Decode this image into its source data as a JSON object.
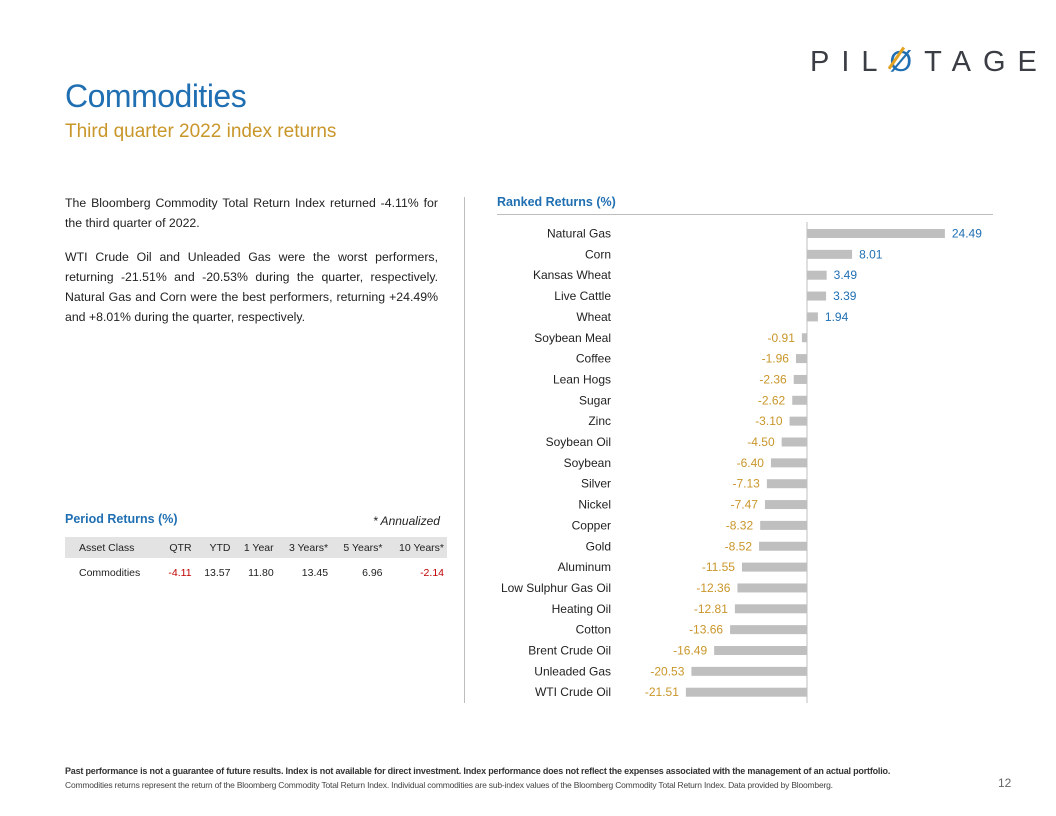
{
  "brand": {
    "logo_text": "PILOTAGE",
    "accent": "#1f6fb2",
    "gold": "#c9962a"
  },
  "header": {
    "title": "Commodities",
    "subtitle": "Third quarter 2022 index returns"
  },
  "summary": {
    "paragraph1": "The Bloomberg Commodity Total Return Index returned -4.11% for the third quarter of 2022.",
    "paragraph2": "WTI Crude Oil and Unleaded Gas were the worst performers, returning -21.51% and -20.53% during the quarter, respectively. Natural Gas and Corn were the best performers, returning +24.49% and +8.01% during the quarter, respectively."
  },
  "period_returns": {
    "title": "Period Returns (%)",
    "note": "* Annualized",
    "headers": [
      "Asset Class",
      "QTR",
      "YTD",
      "1 Year",
      "3 Years*",
      "5 Years*",
      "10 Years*"
    ],
    "row": [
      "Commodities",
      "-4.11",
      "13.57",
      "11.80",
      "13.45",
      "6.96",
      "-2.14"
    ]
  },
  "chart_data": {
    "type": "bar",
    "orientation": "horizontal",
    "title": "Ranked Returns (%)",
    "categories": [
      "Natural Gas",
      "Corn",
      "Kansas Wheat",
      "Live Cattle",
      "Wheat",
      "Soybean Meal",
      "Coffee",
      "Lean Hogs",
      "Sugar",
      "Zinc",
      "Soybean Oil",
      "Soybean",
      "Silver",
      "Nickel",
      "Copper",
      "Gold",
      "Aluminum",
      "Low Sulphur Gas Oil",
      "Heating Oil",
      "Cotton",
      "Brent Crude Oil",
      "Unleaded Gas",
      "WTI Crude Oil"
    ],
    "values": [
      24.49,
      8.01,
      3.49,
      3.39,
      1.94,
      -0.91,
      -1.96,
      -2.36,
      -2.62,
      -3.1,
      -4.5,
      -6.4,
      -7.13,
      -7.47,
      -8.32,
      -8.52,
      -11.55,
      -12.36,
      -12.81,
      -13.66,
      -16.49,
      -20.53,
      -21.51
    ],
    "labels": [
      "24.49",
      "8.01",
      "3.49",
      "3.39",
      "1.94",
      "-0.91",
      "-1.96",
      "-2.36",
      "-2.62",
      "-3.10",
      "-4.50",
      "-6.40",
      "-7.13",
      "-7.47",
      "-8.32",
      "-8.52",
      "-11.55",
      "-12.36",
      "-12.81",
      "-13.66",
      "-16.49",
      "-20.53",
      "-21.51"
    ],
    "positive_label_color": "#1f6fb2",
    "negative_label_color": "#c9962a",
    "bar_color": "#bfbfbf",
    "xlim": [
      -21.51,
      24.49
    ]
  },
  "footer": {
    "disclaimer": "Past performance is not a guarantee of future results. Index is not available for direct investment. Index performance does not reflect the expenses associated with the management of an actual portfolio.",
    "note": "Commodities returns represent the return of the Bloomberg Commodity Total Return Index. Individual commodities are sub-index values of the Bloomberg Commodity Total Return Index. Data provided by Bloomberg.",
    "page_number": "12"
  }
}
